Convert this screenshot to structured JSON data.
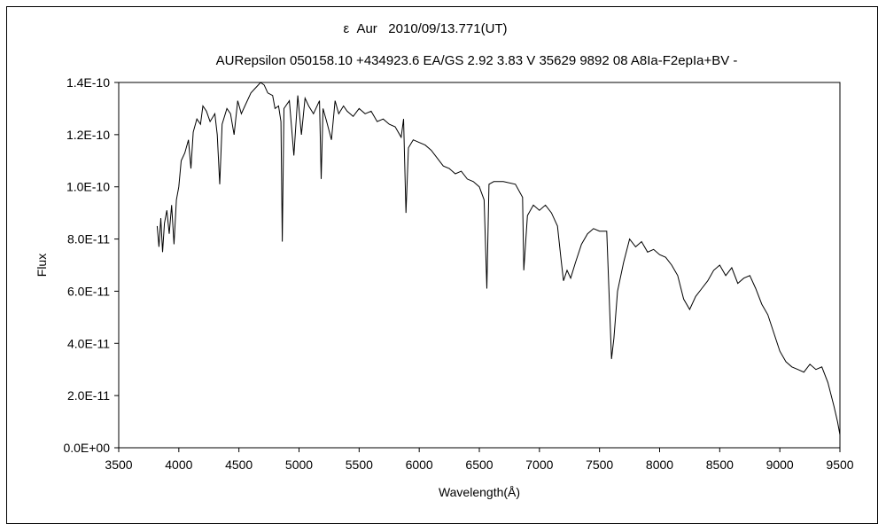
{
  "chart_data": {
    "type": "line",
    "title": "ε  Aur   2010/09/13.771(UT)",
    "subtitle": "AURepsilon 050158.10 +434923.6 EA/GS 2.92 3.83 V 35629 9892 08 A8Ia-F2epIa+BV -",
    "xlabel": "Wavelength(Å)",
    "ylabel": "Flux",
    "xlim": [
      3500,
      9500
    ],
    "ylim": [
      0,
      1.4e-10
    ],
    "xticks": [
      "3500",
      "4000",
      "4500",
      "5000",
      "5500",
      "6000",
      "6500",
      "7000",
      "7500",
      "8000",
      "8500",
      "9000",
      "9500"
    ],
    "yticks": [
      "0.0E+00",
      "2.0E-11",
      "4.0E-11",
      "6.0E-11",
      "8.0E-11",
      "1.0E-10",
      "1.2E-10",
      "1.4E-10"
    ],
    "grid": false,
    "legend": "none",
    "line_color": "#000000",
    "series": [
      {
        "points": [
          [
            3820,
            8.5e-11
          ],
          [
            3835,
            7.7e-11
          ],
          [
            3850,
            8.8e-11
          ],
          [
            3865,
            7.5e-11
          ],
          [
            3880,
            8.6e-11
          ],
          [
            3900,
            9.1e-11
          ],
          [
            3920,
            8.2e-11
          ],
          [
            3940,
            9.3e-11
          ],
          [
            3960,
            7.8e-11
          ],
          [
            3980,
            9.5e-11
          ],
          [
            4000,
            1e-10
          ],
          [
            4020,
            1.1e-10
          ],
          [
            4050,
            1.13e-10
          ],
          [
            4080,
            1.18e-10
          ],
          [
            4101,
            1.07e-10
          ],
          [
            4120,
            1.21e-10
          ],
          [
            4150,
            1.26e-10
          ],
          [
            4180,
            1.24e-10
          ],
          [
            4200,
            1.31e-10
          ],
          [
            4230,
            1.29e-10
          ],
          [
            4260,
            1.25e-10
          ],
          [
            4300,
            1.28e-10
          ],
          [
            4320,
            1.2e-10
          ],
          [
            4340,
            1.01e-10
          ],
          [
            4360,
            1.24e-10
          ],
          [
            4400,
            1.3e-10
          ],
          [
            4430,
            1.28e-10
          ],
          [
            4460,
            1.2e-10
          ],
          [
            4490,
            1.33e-10
          ],
          [
            4520,
            1.28e-10
          ],
          [
            4550,
            1.31e-10
          ],
          [
            4600,
            1.36e-10
          ],
          [
            4640,
            1.38e-10
          ],
          [
            4680,
            1.4e-10
          ],
          [
            4710,
            1.39e-10
          ],
          [
            4740,
            1.36e-10
          ],
          [
            4780,
            1.35e-10
          ],
          [
            4800,
            1.3e-10
          ],
          [
            4830,
            1.31e-10
          ],
          [
            4850,
            1.25e-10
          ],
          [
            4861,
            7.9e-11
          ],
          [
            4875,
            1.3e-10
          ],
          [
            4920,
            1.33e-10
          ],
          [
            4957,
            1.12e-10
          ],
          [
            4990,
            1.35e-10
          ],
          [
            5020,
            1.2e-10
          ],
          [
            5050,
            1.34e-10
          ],
          [
            5080,
            1.31e-10
          ],
          [
            5120,
            1.28e-10
          ],
          [
            5170,
            1.33e-10
          ],
          [
            5184,
            1.03e-10
          ],
          [
            5200,
            1.3e-10
          ],
          [
            5230,
            1.25e-10
          ],
          [
            5270,
            1.18e-10
          ],
          [
            5300,
            1.33e-10
          ],
          [
            5330,
            1.28e-10
          ],
          [
            5370,
            1.31e-10
          ],
          [
            5400,
            1.29e-10
          ],
          [
            5450,
            1.27e-10
          ],
          [
            5500,
            1.3e-10
          ],
          [
            5550,
            1.28e-10
          ],
          [
            5600,
            1.29e-10
          ],
          [
            5650,
            1.25e-10
          ],
          [
            5700,
            1.26e-10
          ],
          [
            5750,
            1.24e-10
          ],
          [
            5800,
            1.23e-10
          ],
          [
            5850,
            1.19e-10
          ],
          [
            5870,
            1.26e-10
          ],
          [
            5890,
            9e-11
          ],
          [
            5910,
            1.15e-10
          ],
          [
            5950,
            1.18e-10
          ],
          [
            6000,
            1.17e-10
          ],
          [
            6050,
            1.16e-10
          ],
          [
            6100,
            1.14e-10
          ],
          [
            6150,
            1.11e-10
          ],
          [
            6200,
            1.08e-10
          ],
          [
            6250,
            1.07e-10
          ],
          [
            6300,
            1.05e-10
          ],
          [
            6350,
            1.06e-10
          ],
          [
            6400,
            1.03e-10
          ],
          [
            6450,
            1.02e-10
          ],
          [
            6500,
            1e-10
          ],
          [
            6540,
            9.5e-11
          ],
          [
            6563,
            6.1e-11
          ],
          [
            6580,
            1.01e-10
          ],
          [
            6620,
            1.02e-10
          ],
          [
            6700,
            1.02e-10
          ],
          [
            6800,
            1.01e-10
          ],
          [
            6860,
            9.6e-11
          ],
          [
            6870,
            6.8e-11
          ],
          [
            6900,
            8.9e-11
          ],
          [
            6950,
            9.3e-11
          ],
          [
            7000,
            9.1e-11
          ],
          [
            7050,
            9.3e-11
          ],
          [
            7100,
            9e-11
          ],
          [
            7150,
            8.5e-11
          ],
          [
            7180,
            7.2e-11
          ],
          [
            7200,
            6.4e-11
          ],
          [
            7230,
            6.8e-11
          ],
          [
            7260,
            6.5e-11
          ],
          [
            7300,
            7.1e-11
          ],
          [
            7350,
            7.8e-11
          ],
          [
            7400,
            8.2e-11
          ],
          [
            7450,
            8.4e-11
          ],
          [
            7500,
            8.3e-11
          ],
          [
            7560,
            8.3e-11
          ],
          [
            7600,
            3.4e-11
          ],
          [
            7620,
            4.2e-11
          ],
          [
            7650,
            6e-11
          ],
          [
            7700,
            7.1e-11
          ],
          [
            7750,
            8e-11
          ],
          [
            7800,
            7.7e-11
          ],
          [
            7850,
            7.9e-11
          ],
          [
            7900,
            7.5e-11
          ],
          [
            7950,
            7.6e-11
          ],
          [
            8000,
            7.4e-11
          ],
          [
            8050,
            7.3e-11
          ],
          [
            8100,
            7e-11
          ],
          [
            8150,
            6.6e-11
          ],
          [
            8200,
            5.7e-11
          ],
          [
            8250,
            5.3e-11
          ],
          [
            8300,
            5.8e-11
          ],
          [
            8350,
            6.1e-11
          ],
          [
            8400,
            6.4e-11
          ],
          [
            8450,
            6.8e-11
          ],
          [
            8500,
            7e-11
          ],
          [
            8550,
            6.6e-11
          ],
          [
            8600,
            6.9e-11
          ],
          [
            8650,
            6.3e-11
          ],
          [
            8700,
            6.5e-11
          ],
          [
            8750,
            6.6e-11
          ],
          [
            8800,
            6.1e-11
          ],
          [
            8850,
            5.5e-11
          ],
          [
            8900,
            5.1e-11
          ],
          [
            8950,
            4.4e-11
          ],
          [
            9000,
            3.7e-11
          ],
          [
            9050,
            3.3e-11
          ],
          [
            9100,
            3.1e-11
          ],
          [
            9150,
            3e-11
          ],
          [
            9200,
            2.9e-11
          ],
          [
            9250,
            3.2e-11
          ],
          [
            9300,
            3e-11
          ],
          [
            9350,
            3.1e-11
          ],
          [
            9400,
            2.5e-11
          ],
          [
            9450,
            1.6e-11
          ],
          [
            9480,
            1e-11
          ],
          [
            9500,
            5e-12
          ]
        ]
      }
    ]
  }
}
